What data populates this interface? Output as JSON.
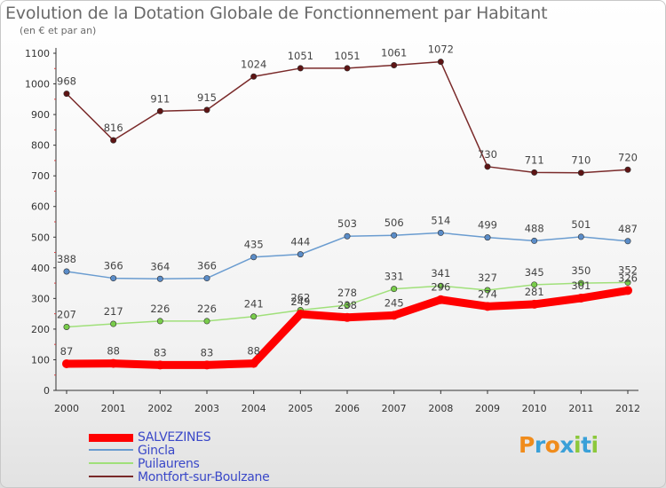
{
  "header": {
    "title": "Evolution de la Dotation Globale de Fonctionnement par Habitant",
    "subtitle": "(en € et par an)"
  },
  "chart_data": {
    "type": "line",
    "title": "Evolution de la Dotation Globale de Fonctionnement par Habitant",
    "ylabel": "(en € et par an)",
    "xlabel": "",
    "x": [
      "2000",
      "2001",
      "2002",
      "2003",
      "2004",
      "2005",
      "2006",
      "2007",
      "2008",
      "2009",
      "2010",
      "2011",
      "2012"
    ],
    "ylim": [
      0,
      1100
    ],
    "yticks": [
      "0",
      "100",
      "200",
      "300",
      "400",
      "500",
      "600",
      "700",
      "800",
      "900",
      "1000",
      "1100"
    ],
    "grid": false,
    "legend_position": "bottom-left",
    "series": [
      {
        "name": "Montfort-sur-Boulzane",
        "color": "#7a2a2a",
        "marker": "#5e1414",
        "values": [
          968,
          816,
          911,
          915,
          1024,
          1051,
          1051,
          1061,
          1072,
          730,
          711,
          710,
          720
        ]
      },
      {
        "name": "Gincla",
        "color": "#6a9cd0",
        "marker": "#5a8cc8",
        "values": [
          388,
          366,
          364,
          366,
          435,
          444,
          503,
          506,
          514,
          499,
          488,
          501,
          487
        ]
      },
      {
        "name": "Puilaurens",
        "color": "#a0e07a",
        "marker": "#78cc4a",
        "values": [
          207,
          217,
          226,
          226,
          241,
          262,
          278,
          331,
          341,
          327,
          345,
          350,
          352
        ]
      },
      {
        "name": "SALVEZINES",
        "color": "#ff0000",
        "marker": "#ff0000",
        "values": [
          87,
          88,
          83,
          83,
          88,
          249,
          238,
          245,
          296,
          274,
          281,
          301,
          326
        ]
      }
    ]
  },
  "legend": {
    "items": [
      {
        "label": "SALVEZINES",
        "color": "#ff0000"
      },
      {
        "label": "Gincla",
        "color": "#6a9cd0"
      },
      {
        "label": "Puilaurens",
        "color": "#a0e07a"
      },
      {
        "label": "Montfort-sur-Boulzane",
        "color": "#7a2a2a"
      }
    ]
  },
  "logo": {
    "letters": [
      "P",
      "r",
      "o",
      "x",
      "i",
      "t",
      "i"
    ],
    "colors": [
      "#f08c1c",
      "#3aa0d8",
      "#f08c1c",
      "#3aa0d8",
      "#8cc83c",
      "#3aa0d8",
      "#8cc83c"
    ]
  }
}
